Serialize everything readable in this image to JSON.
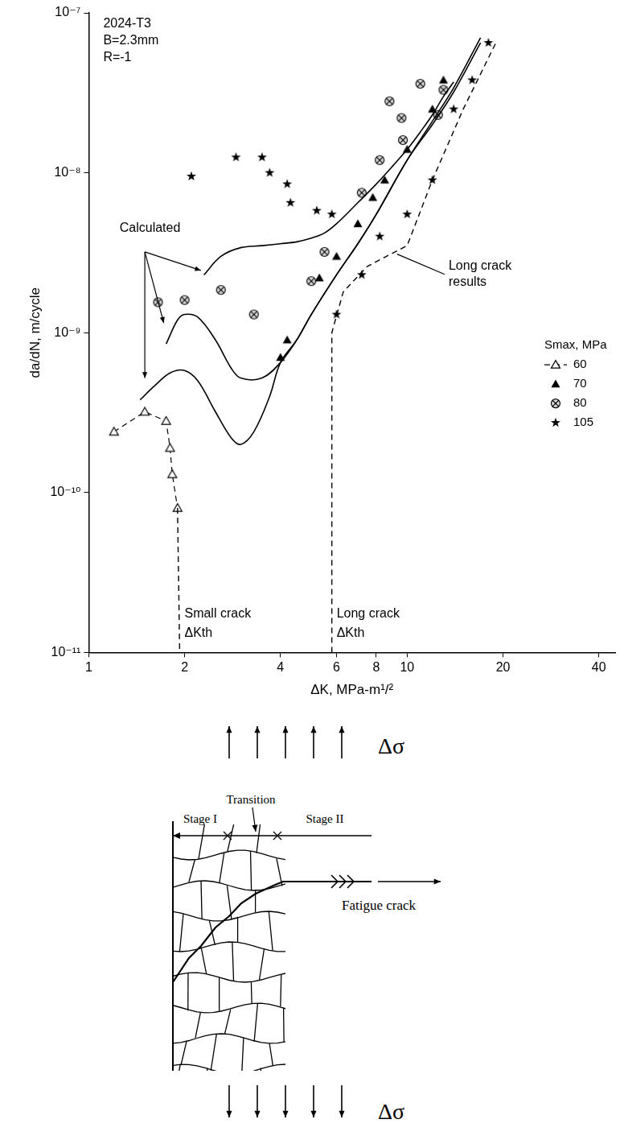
{
  "chart_data": {
    "type": "scatter",
    "notes": [
      "2024-T3",
      "B=2.3mm",
      "R=-1"
    ],
    "x_label": "ΔK, MPa-m¹/²",
    "y_label": "da/dN, m/cycle",
    "log": true,
    "grid": false,
    "legend": "right",
    "legend_title": "Smax, MPa",
    "xlim": [
      1,
      45
    ],
    "xticks": [
      1,
      2,
      4,
      6,
      8,
      10,
      20,
      40
    ],
    "ylim": [
      1e-11,
      1e-07
    ],
    "yticks": [
      {
        "value": 1e-11,
        "label": "10⁻¹¹"
      },
      {
        "value": 1e-10,
        "label": "10⁻¹⁰"
      },
      {
        "value": 1e-09,
        "label": "10⁻⁹"
      },
      {
        "value": 1e-08,
        "label": "10⁻⁸"
      },
      {
        "value": 1e-07,
        "label": "10⁻⁷"
      }
    ],
    "series": [
      {
        "name": "60",
        "type": "line",
        "marker": "open_triangle",
        "line_style": "dashed",
        "color": "#000000",
        "x": [
          1.2,
          1.5,
          1.75,
          1.8,
          1.83,
          1.9
        ],
        "values": [
          2.4e-10,
          3.2e-10,
          2.8e-10,
          1.9e-10,
          1.3e-10,
          8e-11
        ]
      },
      {
        "name": "70",
        "type": "scatter",
        "marker": "triangle",
        "color": "#000000",
        "x": [
          4,
          4.2,
          5.3,
          6,
          7,
          7.8,
          8.5,
          10,
          12,
          13
        ],
        "values": [
          7e-10,
          9e-10,
          2.2e-09,
          3e-09,
          4.8e-09,
          7e-09,
          9e-09,
          1.4e-08,
          2.5e-08,
          3.8e-08
        ]
      },
      {
        "name": "80",
        "type": "scatter",
        "marker": "crossed_circle",
        "color": "#000000",
        "x": [
          1.65,
          2.0,
          2.6,
          3.3,
          5.0,
          5.5,
          7.2,
          8.2,
          8.8,
          9.6,
          9.7,
          11,
          12.5,
          13
        ],
        "values": [
          1.55e-09,
          1.6e-09,
          1.85e-09,
          1.3e-09,
          2.1e-09,
          3.2e-09,
          7.5e-09,
          1.2e-08,
          2.8e-08,
          2.2e-08,
          1.6e-08,
          3.6e-08,
          2.3e-08,
          3.3e-08
        ]
      },
      {
        "name": "105",
        "type": "scatter",
        "marker": "star",
        "color": "#000000",
        "x": [
          2.1,
          2.9,
          3.5,
          3.7,
          4.2,
          4.3,
          5.2,
          5.8,
          6,
          7.2,
          8.2,
          10,
          12,
          14,
          16,
          18
        ],
        "values": [
          9.5e-09,
          1.25e-08,
          1.25e-08,
          1e-08,
          8.5e-09,
          6.5e-09,
          5.8e-09,
          5.5e-09,
          1.3e-09,
          2.3e-09,
          4e-09,
          5.5e-09,
          9e-09,
          2.5e-08,
          3.8e-08,
          6.5e-08
        ]
      }
    ],
    "calculated": {
      "label": "Calculated",
      "color": "#000000",
      "line_style": "solid",
      "curves": [
        {
          "x": [
            2.3,
            2.6,
            3,
            3.5,
            4,
            4.5,
            5,
            5.5,
            6,
            7,
            8,
            9,
            10,
            11,
            12,
            13,
            14
          ],
          "values": [
            2.3e-09,
            3e-09,
            3.4e-09,
            3.5e-09,
            3.6e-09,
            3.7e-09,
            3.9e-09,
            4.2e-09,
            4.8e-09,
            6.5e-09,
            8.5e-09,
            1.1e-08,
            1.4e-08,
            1.8e-08,
            2.3e-08,
            3e-08,
            3.7e-08
          ]
        },
        {
          "x": [
            1.75,
            1.9,
            2,
            2.2,
            2.5,
            2.8,
            3,
            3.5,
            4,
            4.5,
            5,
            6,
            7,
            8,
            10,
            12,
            14,
            17
          ],
          "values": [
            8.5e-10,
            1.2e-09,
            1.3e-09,
            1.25e-09,
            9e-10,
            6e-10,
            5.2e-10,
            5.2e-10,
            6.5e-10,
            9e-10,
            1.3e-09,
            2.3e-09,
            3.6e-09,
            5.5e-09,
            1.2e-08,
            2.1e-08,
            3.4e-08,
            7e-08
          ]
        },
        {
          "x": [
            1.45,
            1.6,
            1.8,
            2,
            2.2,
            2.5,
            2.8,
            3,
            3.3,
            3.7,
            4,
            4.5,
            5,
            6,
            7,
            8,
            10,
            12,
            14,
            17
          ],
          "values": [
            3.8e-10,
            4.6e-10,
            5.6e-10,
            5.8e-10,
            5e-10,
            3.2e-10,
            2.2e-10,
            2e-10,
            2.4e-10,
            4e-10,
            6.5e-10,
            9e-10,
            1.3e-09,
            2.3e-09,
            3.6e-09,
            5.5e-09,
            1.2e-08,
            2e-08,
            3.2e-08,
            6.5e-08
          ]
        }
      ]
    },
    "long_crack": {
      "label": [
        "Long crack",
        "results"
      ],
      "color": "#000000",
      "line_style": "dashed",
      "x": [
        5.8,
        5.8,
        6.3,
        7.5,
        10,
        12,
        15,
        19
      ],
      "values": [
        1e-11,
        1e-09,
        1.8e-09,
        2.6e-09,
        3.5e-09,
        9e-09,
        2.5e-08,
        6.5e-08
      ]
    },
    "small_crack_line": {
      "color": "#000000",
      "line_style": "dashed",
      "x": [
        1.9,
        1.93
      ],
      "values": [
        8e-11,
        1e-11
      ]
    },
    "thresholds": [
      {
        "label": [
          "Small crack",
          "ΔKth"
        ],
        "x": 1.93
      },
      {
        "label": [
          "Long crack",
          "ΔKth"
        ],
        "x": 5.8
      }
    ]
  },
  "diagram": {
    "load_label": "Δσ",
    "stages": [
      "Stage I",
      "Transition",
      "Stage II"
    ],
    "crack_label": "Fatigue crack"
  }
}
